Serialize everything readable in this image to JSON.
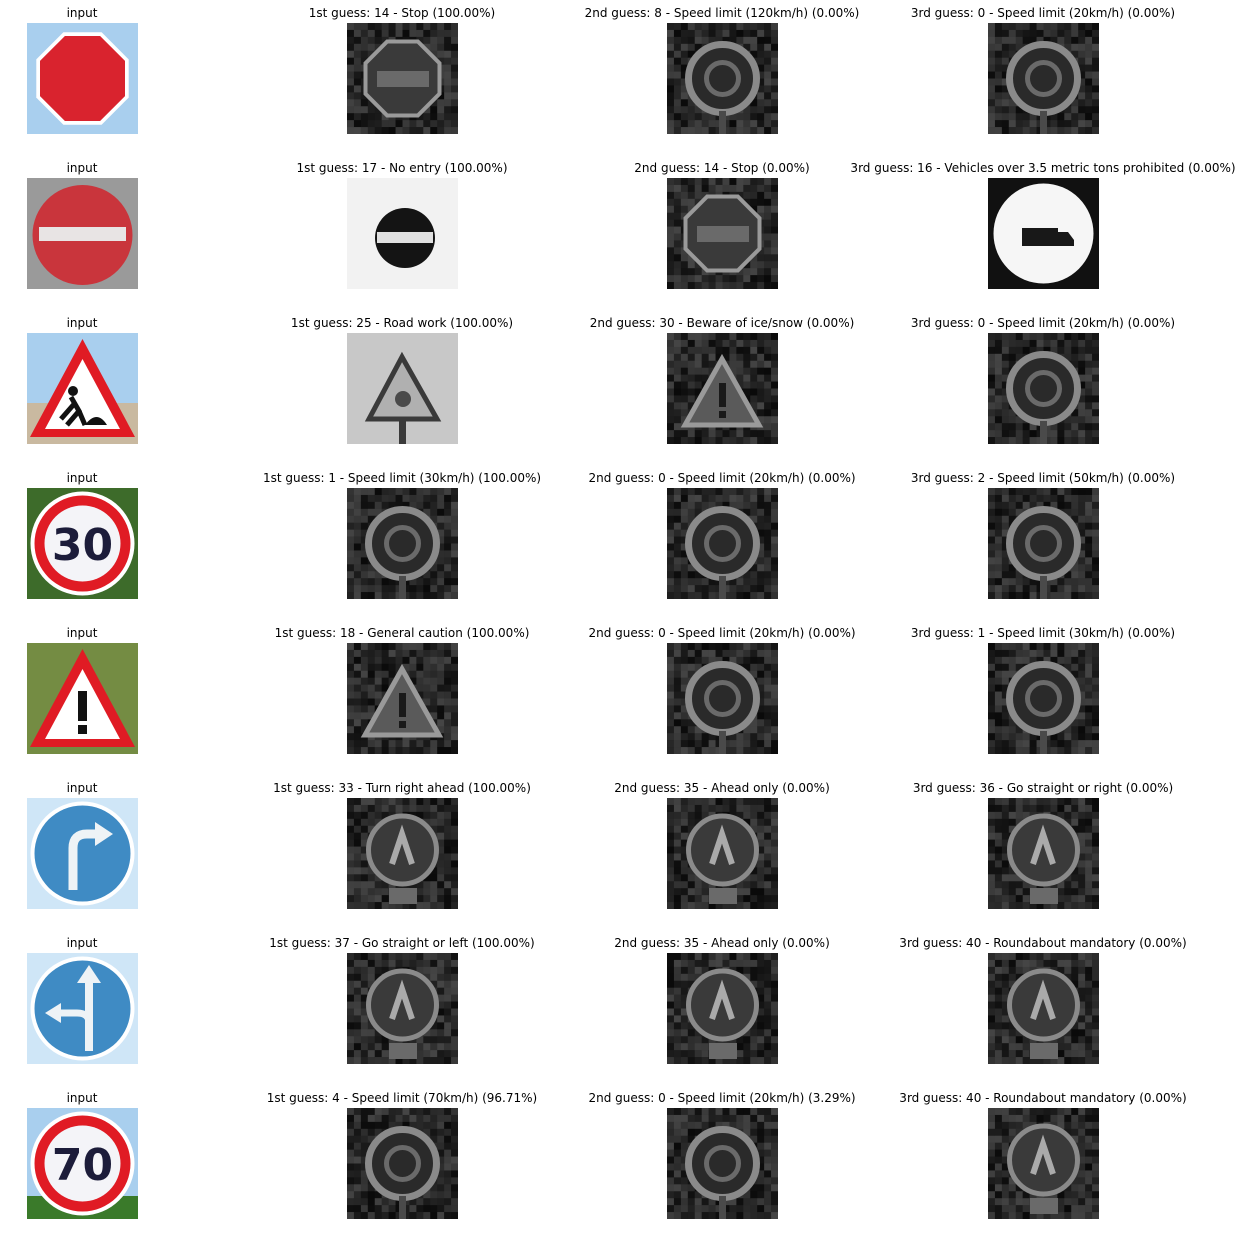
{
  "rows": [
    {
      "input_label": "input",
      "input_sign": "stop-sign",
      "guesses": [
        {
          "title": "1st guess: 14 - Stop (100.00%)",
          "sign": "stop-sign"
        },
        {
          "title": "2nd guess: 8 - Speed limit (120km/h) (0.00%)",
          "sign": "speed-limit-sign"
        },
        {
          "title": "3rd guess: 0 - Speed limit (20km/h) (0.00%)",
          "sign": "speed-limit-sign"
        }
      ]
    },
    {
      "input_label": "input",
      "input_sign": "no-entry-sign",
      "guesses": [
        {
          "title": "1st guess: 17 - No entry (100.00%)",
          "sign": "no-entry-sign"
        },
        {
          "title": "2nd guess: 14 - Stop (0.00%)",
          "sign": "stop-sign"
        },
        {
          "title": "3rd guess: 16 - Vehicles over 3.5 metric tons prohibited (0.00%)",
          "sign": "truck-prohibited-sign"
        }
      ]
    },
    {
      "input_label": "input",
      "input_sign": "road-work-sign",
      "guesses": [
        {
          "title": "1st guess: 25 - Road work (100.00%)",
          "sign": "road-work-sign"
        },
        {
          "title": "2nd guess: 30 - Beware of ice/snow (0.00%)",
          "sign": "warning-triangle-sign"
        },
        {
          "title": "3rd guess: 0 - Speed limit (20km/h) (0.00%)",
          "sign": "speed-limit-sign"
        }
      ]
    },
    {
      "input_label": "input",
      "input_sign": "speed-30-sign",
      "input_text": "30",
      "guesses": [
        {
          "title": "1st guess: 1 - Speed limit (30km/h) (100.00%)",
          "sign": "speed-limit-sign"
        },
        {
          "title": "2nd guess: 0 - Speed limit (20km/h) (0.00%)",
          "sign": "speed-limit-sign"
        },
        {
          "title": "3rd guess: 2 - Speed limit (50km/h) (0.00%)",
          "sign": "speed-limit-sign"
        }
      ]
    },
    {
      "input_label": "input",
      "input_sign": "general-caution-sign",
      "guesses": [
        {
          "title": "1st guess: 18 - General caution (100.00%)",
          "sign": "warning-triangle-sign"
        },
        {
          "title": "2nd guess: 0 - Speed limit (20km/h) (0.00%)",
          "sign": "speed-limit-sign"
        },
        {
          "title": "3rd guess: 1 - Speed limit (30km/h) (0.00%)",
          "sign": "speed-limit-sign"
        }
      ]
    },
    {
      "input_label": "input",
      "input_sign": "turn-right-sign",
      "guesses": [
        {
          "title": "1st guess: 33 - Turn right ahead (100.00%)",
          "sign": "round-sign"
        },
        {
          "title": "2nd guess: 35 - Ahead only (0.00%)",
          "sign": "round-sign"
        },
        {
          "title": "3rd guess: 36 - Go straight or right (0.00%)",
          "sign": "round-sign"
        }
      ]
    },
    {
      "input_label": "input",
      "input_sign": "straight-left-sign",
      "guesses": [
        {
          "title": "1st guess: 37 - Go straight or left (100.00%)",
          "sign": "round-sign"
        },
        {
          "title": "2nd guess: 35 - Ahead only (0.00%)",
          "sign": "round-sign"
        },
        {
          "title": "3rd guess: 40 - Roundabout mandatory (0.00%)",
          "sign": "round-sign"
        }
      ]
    },
    {
      "input_label": "input",
      "input_sign": "speed-70-sign",
      "input_text": "70",
      "guesses": [
        {
          "title": "1st guess: 4 - Speed limit (70km/h) (96.71%)",
          "sign": "speed-limit-sign"
        },
        {
          "title": "2nd guess: 0 - Speed limit (20km/h) (3.29%)",
          "sign": "speed-limit-sign"
        },
        {
          "title": "3rd guess: 40 - Roundabout mandatory (0.00%)",
          "sign": "round-sign"
        }
      ]
    }
  ],
  "colors": {
    "sign_red": "#d9232e",
    "sign_blue": "#3f8bc4",
    "sky_blue": "#a9cfee",
    "grass_green": "#3d6b2a"
  }
}
